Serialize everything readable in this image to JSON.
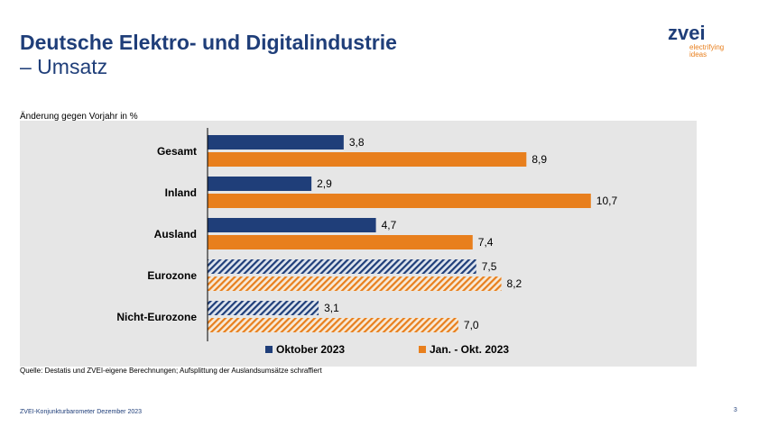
{
  "header": {
    "title": "Deutsche Elektro- und Digitalindustrie",
    "subtitle": "– Umsatz"
  },
  "logo": {
    "name": "zvei",
    "tagline": "electrifying ideas"
  },
  "footer": {
    "source": "Quelle: Destatis und ZVEI-eigene Berechnungen; Aufsplittung der Auslandsumsätze schraffiert",
    "report": "ZVEI-Konjunkturbarometer Dezember 2023",
    "page": "3"
  },
  "colors": {
    "title": "#1f3e79",
    "series1": "#1f3e79",
    "series2": "#e87f1d",
    "panel": "#e6e6e6"
  },
  "chart_data": {
    "type": "bar",
    "orientation": "horizontal",
    "ylabel": "Änderung gegen Vorjahr in %",
    "categories": [
      "Gesamt",
      "Inland",
      "Ausland",
      "Eurozone",
      "Nicht-Eurozone"
    ],
    "hatched_categories": [
      "Eurozone",
      "Nicht-Eurozone"
    ],
    "xlim": [
      0,
      11
    ],
    "series": [
      {
        "name": "Oktober 2023",
        "values": [
          3.8,
          2.9,
          4.7,
          7.5,
          3.1
        ],
        "labels": [
          "3,8",
          "2,9",
          "4,7",
          "7,5",
          "3,1"
        ]
      },
      {
        "name": "Jan. - Okt. 2023",
        "values": [
          8.9,
          10.7,
          7.4,
          8.2,
          7.0
        ],
        "labels": [
          "8,9",
          "10,7",
          "7,4",
          "8,2",
          "7,0"
        ]
      }
    ],
    "legend": "bottom"
  }
}
